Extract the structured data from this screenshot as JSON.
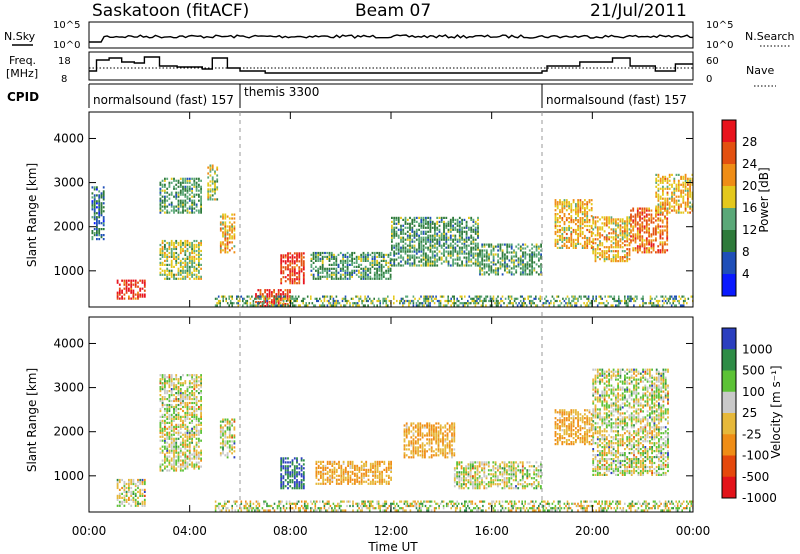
{
  "header": {
    "station": "Saskatoon (fitACF)",
    "beam": "Beam 07",
    "date": "21/Jul/2011"
  },
  "noise_panel": {
    "left_label": "N.Sky",
    "right_label": "N.Search",
    "left_ticks": [
      "10^5",
      "10^0"
    ],
    "right_ticks": [
      "10^5",
      "10^0"
    ]
  },
  "freq_panel": {
    "left_label_line1": "Freq.",
    "left_label_line2": "[MHz]",
    "right_label": "Nave",
    "left_ticks": [
      "18",
      "8"
    ],
    "right_ticks": [
      "60",
      "0"
    ]
  },
  "cpid": {
    "label": "CPID",
    "segments": [
      {
        "name": "normalsound (fast) 157",
        "start_hour": 0.0,
        "end_hour": 6.0
      },
      {
        "name": "themis 3300",
        "start_hour": 6.0,
        "end_hour": 18.0
      },
      {
        "name": "normalsound (fast) 157",
        "start_hour": 18.0,
        "end_hour": 24.0
      }
    ]
  },
  "x_axis": {
    "title": "Time UT",
    "ticks": [
      "00:00",
      "04:00",
      "08:00",
      "12:00",
      "16:00",
      "20:00",
      "00:00"
    ]
  },
  "power_colorbar": {
    "title": "Power [dB]",
    "levels": [
      "4",
      "8",
      "12",
      "16",
      "20",
      "24",
      "28"
    ],
    "colors": [
      "#0a1aff",
      "#1f4fb8",
      "#2e7a3a",
      "#5aa878",
      "#e4c81c",
      "#ef8d16",
      "#e35010",
      "#e8131d"
    ]
  },
  "velocity_colorbar": {
    "title": "Velocity [m s⁻¹]",
    "levels": [
      "1000",
      "500",
      "100",
      "25",
      "-25",
      "-100",
      "-500",
      "-1000"
    ],
    "colors": [
      "#2b3fbf",
      "#2e8c46",
      "#5cc236",
      "#c9c9c9",
      "#e6b83a",
      "#ef8d16",
      "#e5480c",
      "#e3131a"
    ]
  },
  "chart_data": [
    {
      "type": "heatmap",
      "title": "",
      "xlabel": "Time UT",
      "ylabel": "Slant Range [km]",
      "x_range_hours": [
        0,
        24
      ],
      "ylim": [
        180,
        4600
      ],
      "y_ticks": [
        1000,
        2000,
        3000,
        4000
      ],
      "colorbar": "Power [dB]",
      "regions": [
        {
          "t0": 0.1,
          "t1": 0.6,
          "r0": 1700,
          "r1": 2900,
          "value": 8
        },
        {
          "t0": 1.1,
          "t1": 2.2,
          "r0": 350,
          "r1": 800,
          "value": 28
        },
        {
          "t0": 2.8,
          "t1": 4.5,
          "r0": 800,
          "r1": 1700,
          "value": 16
        },
        {
          "t0": 2.8,
          "t1": 4.5,
          "r0": 2300,
          "r1": 3100,
          "value": 12
        },
        {
          "t0": 4.7,
          "t1": 5.1,
          "r0": 2600,
          "r1": 3400,
          "value": 16
        },
        {
          "t0": 5.2,
          "t1": 5.8,
          "r0": 1400,
          "r1": 2300,
          "value": 20
        },
        {
          "t0": 6.6,
          "t1": 8.0,
          "r0": 180,
          "r1": 550,
          "value": 28
        },
        {
          "t0": 7.6,
          "t1": 8.5,
          "r0": 700,
          "r1": 1400,
          "value": 28
        },
        {
          "t0": 8.8,
          "t1": 12.0,
          "r0": 800,
          "r1": 1400,
          "value": 12
        },
        {
          "t0": 12.0,
          "t1": 15.5,
          "r0": 1100,
          "r1": 2200,
          "value": 12
        },
        {
          "t0": 15.5,
          "t1": 18.0,
          "r0": 900,
          "r1": 1600,
          "value": 12
        },
        {
          "t0": 18.5,
          "t1": 20.0,
          "r0": 1500,
          "r1": 2600,
          "value": 20
        },
        {
          "t0": 20.0,
          "t1": 21.5,
          "r0": 1200,
          "r1": 2200,
          "value": 20
        },
        {
          "t0": 21.5,
          "t1": 23.0,
          "r0": 1400,
          "r1": 2400,
          "value": 24
        },
        {
          "t0": 22.5,
          "t1": 24.0,
          "r0": 2300,
          "r1": 3200,
          "value": 20
        }
      ]
    },
    {
      "type": "heatmap",
      "title": "",
      "xlabel": "Time UT",
      "ylabel": "Slant Range [km]",
      "x_range_hours": [
        0,
        24
      ],
      "ylim": [
        180,
        4600
      ],
      "y_ticks": [
        1000,
        2000,
        3000,
        4000
      ],
      "colorbar": "Velocity [m s⁻¹]",
      "regions": [
        {
          "t0": 1.1,
          "t1": 2.2,
          "r0": 300,
          "r1": 900,
          "value": 0
        },
        {
          "t0": 2.8,
          "t1": 4.5,
          "r0": 1100,
          "r1": 3300,
          "value": 0
        },
        {
          "t0": 5.2,
          "t1": 5.8,
          "r0": 1400,
          "r1": 2300,
          "value": 0
        },
        {
          "t0": 7.6,
          "t1": 8.5,
          "r0": 700,
          "r1": 1400,
          "value": 500
        },
        {
          "t0": 9.0,
          "t1": 12.0,
          "r0": 800,
          "r1": 1300,
          "value": -100
        },
        {
          "t0": 12.5,
          "t1": 14.5,
          "r0": 1400,
          "r1": 2200,
          "value": -100
        },
        {
          "t0": 14.5,
          "t1": 18.0,
          "r0": 700,
          "r1": 1300,
          "value": 0
        },
        {
          "t0": 18.5,
          "t1": 20.0,
          "r0": 1700,
          "r1": 2500,
          "value": -100
        },
        {
          "t0": 20.0,
          "t1": 23.0,
          "r0": 1000,
          "r1": 3400,
          "value": 0
        }
      ]
    }
  ]
}
